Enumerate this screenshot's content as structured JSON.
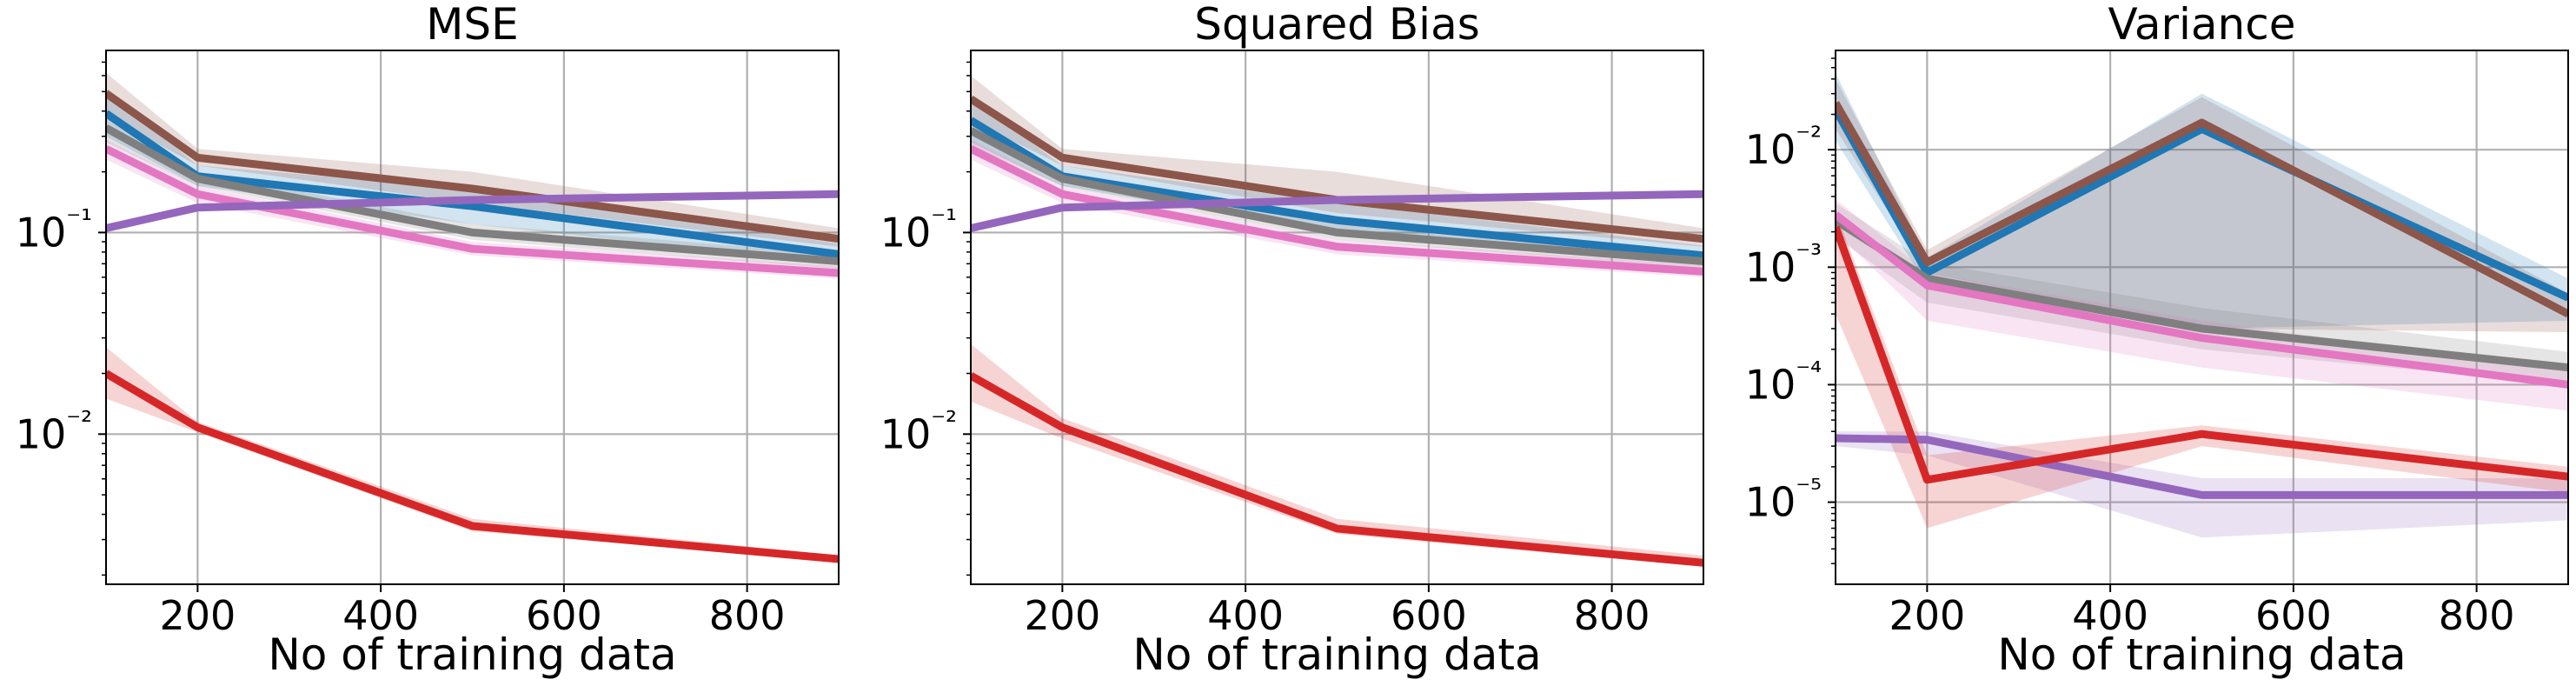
{
  "chart_data": [
    {
      "type": "line",
      "title": "MSE",
      "xlabel": "No of training data",
      "ylabel": "",
      "xlim": [
        100,
        900
      ],
      "ylim": [
        0.0018,
        0.8
      ],
      "yscale": "log",
      "grid": true,
      "x_ticks": [
        200,
        400,
        600,
        800
      ],
      "y_ticks": [
        {
          "value": 0.01,
          "label": "10⁻²"
        },
        {
          "value": 0.1,
          "label": "10⁻¹"
        }
      ],
      "x": [
        100,
        200,
        500,
        900
      ],
      "series": [
        {
          "color": "#1f77b4",
          "values": [
            0.39,
            0.19,
            0.135,
            0.078
          ],
          "lower": [
            0.3,
            0.17,
            0.11,
            0.07
          ],
          "upper": [
            0.52,
            0.215,
            0.165,
            0.088
          ]
        },
        {
          "color": "#8c564b",
          "values": [
            0.49,
            0.235,
            0.165,
            0.093
          ],
          "lower": [
            0.38,
            0.215,
            0.14,
            0.085
          ],
          "upper": [
            0.62,
            0.26,
            0.2,
            0.105
          ]
        },
        {
          "color": "#7f7f7f",
          "values": [
            0.33,
            0.185,
            0.1,
            0.072
          ],
          "lower": [
            0.28,
            0.17,
            0.092,
            0.066
          ],
          "upper": [
            0.38,
            0.2,
            0.11,
            0.078
          ]
        },
        {
          "color": "#e377c2",
          "values": [
            0.26,
            0.155,
            0.083,
            0.063
          ],
          "lower": [
            0.23,
            0.14,
            0.077,
            0.059
          ],
          "upper": [
            0.29,
            0.17,
            0.09,
            0.068
          ]
        },
        {
          "color": "#9467bd",
          "values": [
            0.105,
            0.133,
            0.145,
            0.155
          ],
          "lower": [
            0.102,
            0.13,
            0.142,
            0.152
          ],
          "upper": [
            0.108,
            0.136,
            0.148,
            0.158
          ]
        },
        {
          "color": "#d62728",
          "values": [
            0.02,
            0.0108,
            0.0035,
            0.0024
          ],
          "lower": [
            0.015,
            0.0102,
            0.0033,
            0.00235
          ],
          "upper": [
            0.027,
            0.0115,
            0.0038,
            0.0025
          ]
        }
      ]
    },
    {
      "type": "line",
      "title": "Squared Bias",
      "xlabel": "No of training data",
      "ylabel": "",
      "xlim": [
        100,
        900
      ],
      "ylim": [
        0.0018,
        0.8
      ],
      "yscale": "log",
      "grid": true,
      "x_ticks": [
        200,
        400,
        600,
        800
      ],
      "y_ticks": [
        {
          "value": 0.01,
          "label": "10⁻²"
        },
        {
          "value": 0.1,
          "label": "10⁻¹"
        }
      ],
      "x": [
        100,
        200,
        500,
        900
      ],
      "series": [
        {
          "color": "#1f77b4",
          "values": [
            0.36,
            0.19,
            0.115,
            0.077
          ],
          "lower": [
            0.28,
            0.17,
            0.1,
            0.07
          ],
          "upper": [
            0.47,
            0.215,
            0.14,
            0.086
          ]
        },
        {
          "color": "#8c564b",
          "values": [
            0.46,
            0.235,
            0.145,
            0.093
          ],
          "lower": [
            0.36,
            0.215,
            0.125,
            0.085
          ],
          "upper": [
            0.6,
            0.26,
            0.2,
            0.105
          ]
        },
        {
          "color": "#7f7f7f",
          "values": [
            0.32,
            0.185,
            0.1,
            0.072
          ],
          "lower": [
            0.27,
            0.17,
            0.092,
            0.066
          ],
          "upper": [
            0.37,
            0.2,
            0.11,
            0.078
          ]
        },
        {
          "color": "#e377c2",
          "values": [
            0.26,
            0.155,
            0.085,
            0.064
          ],
          "lower": [
            0.23,
            0.14,
            0.078,
            0.06
          ],
          "upper": [
            0.29,
            0.17,
            0.092,
            0.069
          ]
        },
        {
          "color": "#9467bd",
          "values": [
            0.105,
            0.133,
            0.145,
            0.155
          ],
          "lower": [
            0.102,
            0.13,
            0.142,
            0.152
          ],
          "upper": [
            0.108,
            0.136,
            0.148,
            0.158
          ]
        },
        {
          "color": "#d62728",
          "values": [
            0.0195,
            0.0108,
            0.0034,
            0.0023
          ],
          "lower": [
            0.0145,
            0.0095,
            0.0032,
            0.0022
          ],
          "upper": [
            0.028,
            0.012,
            0.0038,
            0.0025
          ]
        }
      ]
    },
    {
      "type": "line",
      "title": "Variance",
      "xlabel": "No of training data",
      "ylabel": "",
      "xlim": [
        100,
        900
      ],
      "ylim": [
        2e-06,
        0.07
      ],
      "yscale": "log",
      "grid": true,
      "x_ticks": [
        200,
        400,
        600,
        800
      ],
      "y_ticks": [
        {
          "value": 1e-05,
          "label": "10⁻⁵"
        },
        {
          "value": 0.0001,
          "label": "10⁻⁴"
        },
        {
          "value": 0.001,
          "label": "10⁻³"
        },
        {
          "value": 0.01,
          "label": "10⁻²"
        }
      ],
      "x": [
        100,
        200,
        500,
        900
      ],
      "series": [
        {
          "color": "#1f77b4",
          "values": [
            0.022,
            0.0009,
            0.015,
            0.00055
          ],
          "lower": [
            0.012,
            0.0007,
            0.0003,
            0.00035
          ],
          "upper": [
            0.045,
            0.0012,
            0.03,
            0.0008
          ]
        },
        {
          "color": "#8c564b",
          "values": [
            0.025,
            0.0011,
            0.017,
            0.0004
          ],
          "lower": [
            0.015,
            0.0009,
            0.0003,
            0.00028
          ],
          "upper": [
            0.04,
            0.0014,
            0.028,
            0.0006
          ]
        },
        {
          "color": "#7f7f7f",
          "values": [
            0.0025,
            0.0008,
            0.0003,
            0.00014
          ],
          "lower": [
            0.0018,
            0.0005,
            0.0002,
            0.0001
          ],
          "upper": [
            0.0035,
            0.0011,
            0.00045,
            0.00019
          ]
        },
        {
          "color": "#e377c2",
          "values": [
            0.0028,
            0.0007,
            0.00025,
            0.0001
          ],
          "lower": [
            0.002,
            0.00035,
            0.00014,
            6e-05
          ],
          "upper": [
            0.0038,
            0.0009,
            0.00035,
            0.00013
          ]
        },
        {
          "color": "#9467bd",
          "values": [
            3.5e-05,
            3.4e-05,
            1.15e-05,
            1.15e-05
          ],
          "lower": [
            3e-05,
            2.5e-05,
            5e-06,
            7e-06
          ],
          "upper": [
            4e-05,
            4e-05,
            1.6e-05,
            1.6e-05
          ]
        },
        {
          "color": "#d62728",
          "values": [
            0.0022,
            1.55e-05,
            3.8e-05,
            1.65e-05
          ],
          "lower": [
            0.0004,
            6e-06,
            3e-05,
            1.2e-05
          ],
          "upper": [
            0.003,
            2.5e-05,
            4.5e-05,
            2e-05
          ]
        }
      ]
    }
  ]
}
